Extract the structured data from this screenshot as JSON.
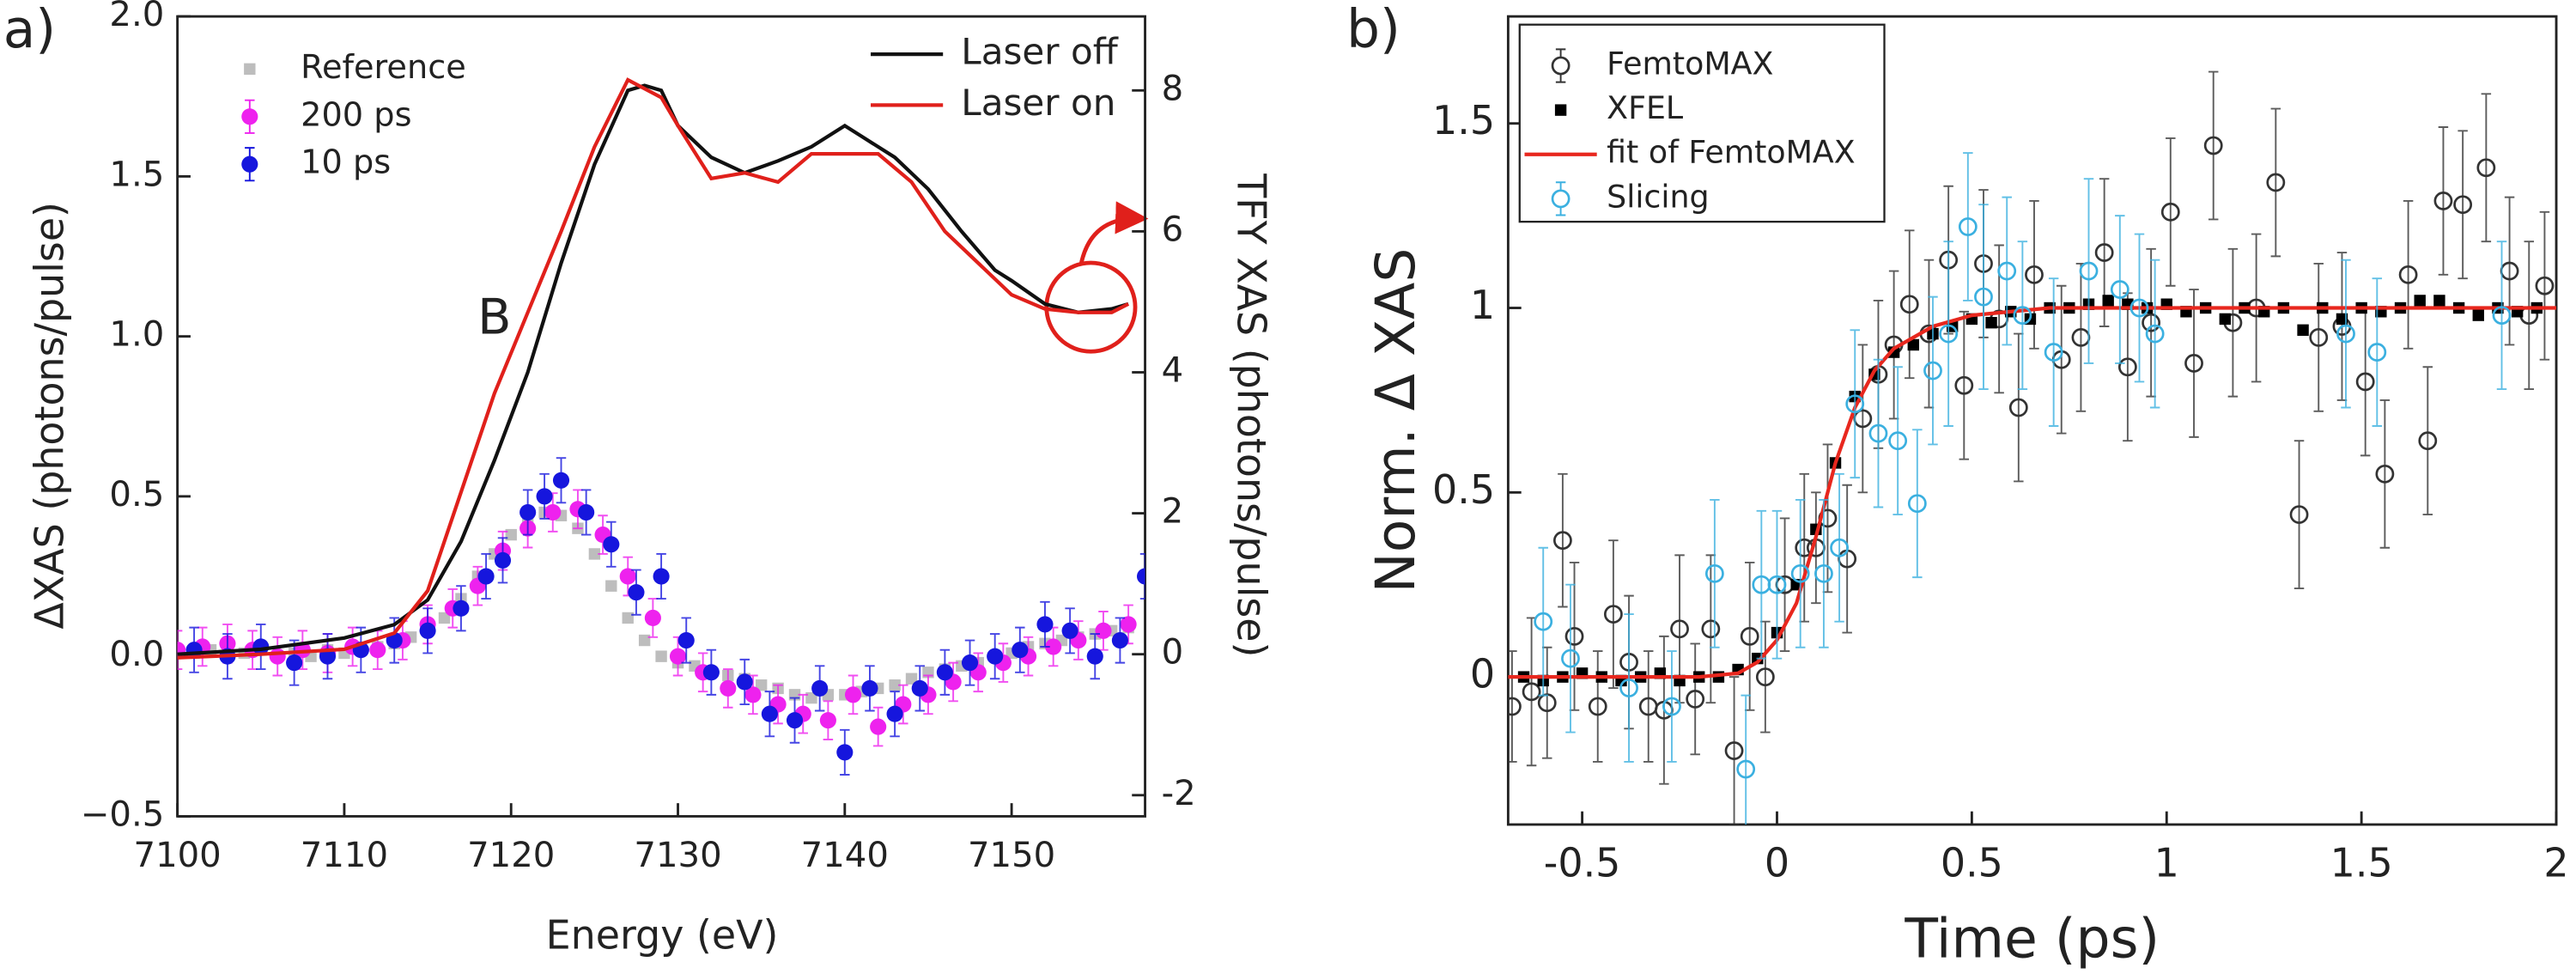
{
  "chart_data": [
    {
      "type": "line",
      "panel_label": "a)",
      "x_label": "Energy (eV)",
      "y_label": "ΔXAS (photons/pulse)",
      "y2_label": "TFY XAS (photons/pulse)",
      "xlim": [
        7100,
        7158
      ],
      "xticks": [
        7100,
        7110,
        7120,
        7130,
        7140,
        7150
      ],
      "ylim": [
        -0.5,
        2.0
      ],
      "yticks": [
        {
          "value": -0.5,
          "label": "−0.5"
        },
        {
          "value": 0,
          "label": "0.0"
        },
        0.5,
        {
          "value": 1,
          "label": "1.0"
        },
        1.5,
        {
          "value": 2,
          "label": "2.0"
        }
      ],
      "y2lim": [
        -2.3,
        9.05
      ],
      "y2ticks": [
        -2,
        0,
        2,
        4,
        6,
        8
      ],
      "annotations": [
        {
          "text": "B",
          "x": 7119,
          "y": 1.05
        }
      ],
      "series": [
        {
          "name": "Reference",
          "color": "#bdbdbd",
          "style": "points",
          "marker": "square",
          "x": [
            7100,
            7101,
            7102,
            7103,
            7104,
            7105,
            7106,
            7107,
            7108,
            7109,
            7110,
            7111,
            7112,
            7113,
            7114,
            7115,
            7116,
            7117,
            7118,
            7119,
            7120,
            7121,
            7122,
            7123,
            7124,
            7125,
            7126,
            7127,
            7128,
            7129,
            7130,
            7131,
            7132,
            7133,
            7134,
            7135,
            7136,
            7137,
            7138,
            7139,
            7140,
            7141,
            7142,
            7143,
            7144,
            7145,
            7146,
            7147,
            7148,
            7149,
            7150,
            7151,
            7152,
            7153,
            7154,
            7155,
            7156,
            7157
          ],
          "values": [
            0.02,
            0.01,
            0.02,
            0.0,
            0.01,
            0.02,
            0.0,
            0.01,
            0.0,
            0.02,
            0.01,
            0.02,
            0.03,
            0.04,
            0.06,
            0.08,
            0.12,
            0.18,
            0.25,
            0.32,
            0.38,
            0.42,
            0.45,
            0.44,
            0.4,
            0.32,
            0.22,
            0.12,
            0.05,
            0.0,
            -0.02,
            -0.03,
            -0.05,
            -0.06,
            -0.07,
            -0.09,
            -0.1,
            -0.12,
            -0.13,
            -0.12,
            -0.12,
            -0.11,
            -0.1,
            -0.09,
            -0.07,
            -0.05,
            -0.04,
            -0.03,
            -0.02,
            0.0,
            0.01,
            0.03,
            0.04,
            0.05,
            0.06,
            0.07,
            0.08,
            0.09
          ]
        },
        {
          "name": "200 ps",
          "color": "#ee22ee",
          "style": "points",
          "marker": "filled-circle",
          "x": [
            7100,
            7101.5,
            7103,
            7104.5,
            7106,
            7107.5,
            7109,
            7110.5,
            7112,
            7113.5,
            7115,
            7116.5,
            7118,
            7119.5,
            7121,
            7122.5,
            7124,
            7125.5,
            7127,
            7128.5,
            7130,
            7131.5,
            7133,
            7134.5,
            7136,
            7137.5,
            7139,
            7140.5,
            7142,
            7143.5,
            7145,
            7146.5,
            7148,
            7149.5,
            7151,
            7152.5,
            7154,
            7155.5,
            7157
          ],
          "values": [
            0.02,
            0.03,
            0.04,
            0.02,
            0.0,
            0.02,
            0.01,
            0.03,
            0.02,
            0.05,
            0.1,
            0.15,
            0.22,
            0.33,
            0.4,
            0.45,
            0.46,
            0.38,
            0.25,
            0.12,
            0.0,
            -0.05,
            -0.1,
            -0.12,
            -0.15,
            -0.18,
            -0.2,
            -0.12,
            -0.22,
            -0.15,
            -0.12,
            -0.08,
            -0.05,
            -0.02,
            0.0,
            0.03,
            0.05,
            0.08,
            0.1
          ],
          "errors": [
            0.06,
            0.06,
            0.06,
            0.06,
            0.06,
            0.06,
            0.06,
            0.06,
            0.06,
            0.06,
            0.06,
            0.06,
            0.06,
            0.06,
            0.06,
            0.06,
            0.06,
            0.06,
            0.06,
            0.06,
            0.06,
            0.06,
            0.06,
            0.06,
            0.06,
            0.06,
            0.06,
            0.06,
            0.06,
            0.06,
            0.06,
            0.06,
            0.06,
            0.06,
            0.06,
            0.06,
            0.06,
            0.06,
            0.06
          ]
        },
        {
          "name": "10 ps",
          "color": "#1616dd",
          "style": "points",
          "marker": "filled-circle",
          "x": [
            7101,
            7103,
            7105,
            7107,
            7109,
            7111,
            7113,
            7115,
            7117,
            7118.5,
            7119.5,
            7121,
            7122,
            7123,
            7124.5,
            7126,
            7127.5,
            7129,
            7130.5,
            7132,
            7134,
            7135.5,
            7137,
            7138.5,
            7140,
            7141.5,
            7143,
            7144.5,
            7146,
            7147.5,
            7149,
            7150.5,
            7152,
            7153.5,
            7155,
            7156.5,
            7158
          ],
          "values": [
            0.02,
            0.0,
            0.03,
            -0.02,
            0.0,
            0.02,
            0.05,
            0.08,
            0.15,
            0.25,
            0.3,
            0.45,
            0.5,
            0.55,
            0.45,
            0.35,
            0.2,
            0.25,
            0.05,
            -0.05,
            -0.08,
            -0.18,
            -0.2,
            -0.1,
            -0.3,
            -0.1,
            -0.18,
            -0.1,
            -0.05,
            -0.02,
            0.0,
            0.02,
            0.1,
            0.08,
            0.0,
            0.05,
            0.25
          ],
          "errors": [
            0.07,
            0.07,
            0.07,
            0.07,
            0.07,
            0.07,
            0.07,
            0.07,
            0.07,
            0.07,
            0.07,
            0.07,
            0.07,
            0.07,
            0.07,
            0.07,
            0.07,
            0.07,
            0.07,
            0.07,
            0.07,
            0.07,
            0.07,
            0.07,
            0.07,
            0.07,
            0.07,
            0.07,
            0.07,
            0.07,
            0.07,
            0.07,
            0.07,
            0.07,
            0.07,
            0.07,
            0.07
          ]
        },
        {
          "name": "Laser off",
          "color": "#111111",
          "style": "line",
          "axis": "y2",
          "x": [
            7100,
            7105,
            7110,
            7113,
            7115,
            7117,
            7119,
            7121,
            7123,
            7125,
            7127,
            7128,
            7129,
            7130,
            7132,
            7134,
            7136,
            7138,
            7140,
            7141,
            7143,
            7145,
            7147,
            7149,
            7150,
            7152,
            7154,
            7156,
            7157
          ],
          "values": [
            0,
            0.07,
            0.23,
            0.42,
            0.77,
            1.6,
            2.75,
            4.0,
            5.55,
            6.95,
            8.0,
            8.07,
            8.0,
            7.5,
            7.05,
            6.83,
            7.0,
            7.2,
            7.5,
            7.35,
            7.05,
            6.6,
            6.0,
            5.45,
            5.3,
            4.97,
            4.85,
            4.9,
            4.97
          ]
        },
        {
          "name": "Laser on",
          "color": "#e0201b",
          "style": "line",
          "axis": "y2",
          "x": [
            7100,
            7105,
            7110,
            7113,
            7115,
            7117,
            7119,
            7121,
            7123,
            7125,
            7127,
            7129,
            7130,
            7132,
            7134,
            7136,
            7138,
            7140,
            7142,
            7144,
            7146,
            7148,
            7150,
            7152,
            7154,
            7156,
            7157
          ],
          "values": [
            -0.05,
            0,
            0.07,
            0.3,
            0.9,
            2.3,
            3.7,
            4.85,
            6.0,
            7.2,
            8.15,
            7.9,
            7.5,
            6.75,
            6.83,
            6.7,
            7.1,
            7.1,
            7.1,
            6.7,
            6.0,
            5.55,
            5.1,
            4.9,
            4.85,
            4.85,
            4.97
          ]
        }
      ]
    },
    {
      "type": "line",
      "panel_label": "b)",
      "x_label": "Time (ps)",
      "y_label": "Norm. Δ XAS",
      "legend": "upper left",
      "xlim": [
        -0.69,
        2.0
      ],
      "xticks": [
        -0.5,
        0,
        0.5,
        1,
        1.5,
        2
      ],
      "ylim": [
        -0.4,
        1.79
      ],
      "yticks": [
        0,
        0.5,
        1,
        1.5
      ],
      "series": [
        {
          "name": "FemtoMAX",
          "color": "#333333",
          "style": "points",
          "marker": "open-circle",
          "x": [
            -0.68,
            -0.63,
            -0.59,
            -0.55,
            -0.52,
            -0.46,
            -0.42,
            -0.38,
            -0.33,
            -0.29,
            -0.25,
            -0.21,
            -0.17,
            -0.11,
            -0.07,
            -0.03,
            0.02,
            0.07,
            0.1,
            0.13,
            0.18,
            0.22,
            0.26,
            0.3,
            0.34,
            0.39,
            0.44,
            0.48,
            0.53,
            0.57,
            0.62,
            0.66,
            0.73,
            0.78,
            0.84,
            0.9,
            0.96,
            1.01,
            1.07,
            1.12,
            1.17,
            1.23,
            1.28,
            1.34,
            1.39,
            1.45,
            1.51,
            1.56,
            1.62,
            1.67,
            1.71,
            1.76,
            1.82,
            1.88,
            1.93,
            1.97
          ],
          "values": [
            -0.08,
            -0.04,
            -0.07,
            0.37,
            0.11,
            -0.08,
            0.17,
            0.04,
            -0.08,
            -0.09,
            0.13,
            -0.06,
            0.13,
            -0.2,
            0.11,
            0.0,
            0.25,
            0.35,
            0.35,
            0.43,
            0.32,
            0.7,
            0.82,
            0.9,
            1.01,
            0.93,
            1.13,
            0.79,
            1.12,
            0.97,
            0.73,
            1.09,
            0.86,
            0.92,
            1.15,
            0.84,
            0.96,
            1.26,
            0.85,
            1.44,
            0.96,
            1.0,
            1.34,
            0.44,
            0.92,
            0.95,
            0.8,
            0.55,
            1.09,
            0.64,
            1.29,
            1.28,
            1.38,
            1.1,
            0.98,
            1.06
          ],
          "errors": [
            0.15,
            0.2,
            0.15,
            0.18,
            0.2,
            0.15,
            0.2,
            0.18,
            0.15,
            0.2,
            0.2,
            0.15,
            0.2,
            0.2,
            0.2,
            0.15,
            0.18,
            0.2,
            0.15,
            0.2,
            0.2,
            0.2,
            0.2,
            0.2,
            0.2,
            0.2,
            0.2,
            0.2,
            0.2,
            0.2,
            0.2,
            0.2,
            0.2,
            0.2,
            0.2,
            0.2,
            0.2,
            0.2,
            0.2,
            0.2,
            0.2,
            0.2,
            0.2,
            0.2,
            0.2,
            0.2,
            0.2,
            0.2,
            0.2,
            0.2,
            0.2,
            0.2,
            0.2,
            0.2,
            0.2,
            0.2
          ]
        },
        {
          "name": "XFEL",
          "color": "#000000",
          "style": "points",
          "marker": "square",
          "x": [
            -0.65,
            -0.6,
            -0.55,
            -0.5,
            -0.45,
            -0.4,
            -0.35,
            -0.3,
            -0.25,
            -0.2,
            -0.15,
            -0.1,
            -0.05,
            0,
            0.05,
            0.1,
            0.15,
            0.2,
            0.25,
            0.3,
            0.35,
            0.4,
            0.45,
            0.5,
            0.55,
            0.6,
            0.65,
            0.7,
            0.75,
            0.8,
            0.85,
            0.9,
            0.95,
            1.0,
            1.05,
            1.1,
            1.15,
            1.2,
            1.25,
            1.3,
            1.35,
            1.4,
            1.45,
            1.5,
            1.55,
            1.6,
            1.65,
            1.7,
            1.75,
            1.8,
            1.85,
            1.9,
            1.95
          ],
          "values": [
            0.0,
            -0.01,
            0.0,
            0.01,
            0.0,
            -0.01,
            0.0,
            0.01,
            -0.01,
            0.0,
            0.0,
            0.02,
            0.05,
            0.12,
            0.25,
            0.4,
            0.58,
            0.76,
            0.82,
            0.88,
            0.9,
            0.93,
            0.95,
            0.97,
            0.96,
            0.99,
            0.97,
            1.0,
            1.0,
            1.01,
            1.02,
            1.01,
            1.0,
            1.01,
            0.99,
            1.0,
            0.97,
            1.0,
            0.99,
            1.0,
            0.94,
            1.0,
            0.97,
            1.0,
            0.99,
            1.0,
            1.02,
            1.02,
            1.0,
            0.98,
            1.0,
            0.99,
            1.0
          ]
        },
        {
          "name": "fit of FemtoMAX",
          "color": "#e8271e",
          "style": "line",
          "x": [
            -0.69,
            -0.2,
            -0.1,
            -0.05,
            0,
            0.05,
            0.1,
            0.15,
            0.2,
            0.25,
            0.3,
            0.4,
            0.5,
            0.7,
            2.0
          ],
          "values": [
            0,
            0,
            0.01,
            0.04,
            0.1,
            0.2,
            0.38,
            0.58,
            0.73,
            0.83,
            0.89,
            0.95,
            0.98,
            1.0,
            1.0
          ]
        },
        {
          "name": "Slicing",
          "color": "#3bb0e0",
          "style": "points",
          "marker": "open-circle",
          "x": [
            -0.6,
            -0.53,
            -0.38,
            -0.27,
            -0.16,
            -0.08,
            -0.04,
            0.0,
            0.06,
            0.12,
            0.16,
            0.2,
            0.26,
            0.31,
            0.36,
            0.4,
            0.44,
            0.49,
            0.53,
            0.59,
            0.63,
            0.71,
            0.8,
            0.88,
            0.93,
            0.97,
            1.46,
            1.54,
            1.86
          ],
          "values": [
            0.15,
            0.05,
            -0.03,
            -0.08,
            0.28,
            -0.25,
            0.25,
            0.25,
            0.28,
            0.28,
            0.35,
            0.74,
            0.66,
            0.64,
            0.47,
            0.83,
            0.93,
            1.22,
            1.03,
            1.1,
            0.98,
            0.88,
            1.1,
            1.05,
            1.0,
            0.93,
            0.93,
            0.88,
            0.98
          ],
          "errors": [
            0.2,
            0.2,
            0.2,
            0.15,
            0.2,
            0.2,
            0.2,
            0.2,
            0.2,
            0.2,
            0.2,
            0.2,
            0.2,
            0.2,
            0.2,
            0.2,
            0.25,
            0.2,
            0.25,
            0.2,
            0.2,
            0.2,
            0.25,
            0.2,
            0.2,
            0.2,
            0.2,
            0.2,
            0.2
          ]
        }
      ]
    }
  ]
}
